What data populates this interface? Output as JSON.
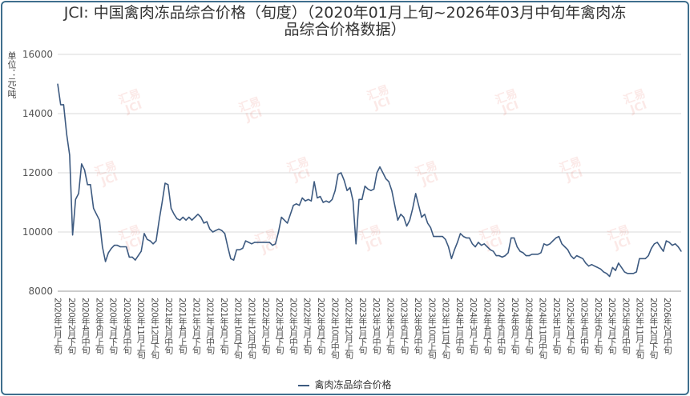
{
  "chart_data": {
    "type": "line",
    "title": "JCI: 中国禽肉冻品综合价格（旬度）（2020年01月上旬~2026年03月中旬年禽肉冻品综合价格数据）",
    "title_lines": [
      "JCI: 中国禽肉冻品综合价格（旬度）（2020年01月上旬~2026年03月中旬年禽肉冻",
      "品综合价格数据）"
    ],
    "ylabel": "单位：元/吨",
    "ylim": [
      8000,
      16000
    ],
    "yticks": [
      8000,
      10000,
      12000,
      14000,
      16000
    ],
    "grid": true,
    "legend_position": "bottom-center",
    "x_tick_labels": [
      "2020年1月上旬",
      "2020年2月下旬",
      "2020年4月中旬",
      "2020年6月上旬",
      "2020年7月下旬",
      "2020年9月中旬",
      "2020年11月上旬",
      "2020年12月下旬",
      "2021年2月中旬",
      "2021年4月上旬",
      "2021年5月下旬",
      "2021年7月中旬",
      "2021年9月上旬",
      "2021年10月下旬",
      "2021年12月中旬",
      "2022年2月上旬",
      "2022年3月下旬",
      "2022年5月中旬",
      "2022年7月上旬",
      "2022年8月下旬",
      "2022年10月中旬",
      "2022年12月上旬",
      "2023年1月下旬",
      "2023年3月中旬",
      "2023年5月上旬",
      "2023年6月下旬",
      "2023年8月中旬",
      "2023年10月上旬",
      "2023年11月下旬",
      "2024年1月中旬",
      "2024年3月上旬",
      "2024年4月下旬",
      "2024年6月中旬",
      "2024年8月上旬",
      "2024年9月下旬",
      "2024年11月中旬",
      "2025年1月上旬",
      "2025年2月下旬",
      "2025年4月中旬",
      "2025年6月上旬",
      "2025年7月下旬",
      "2025年9月中旬",
      "2025年11月上旬",
      "2025年12月下旬",
      "2026年2月中旬"
    ],
    "series": [
      {
        "name": "禽肉冻品综合价格",
        "color": "#3d5a80",
        "values": [
          15000,
          14300,
          14300,
          13300,
          12600,
          9900,
          11100,
          11300,
          12300,
          12100,
          11600,
          11600,
          10800,
          10600,
          10400,
          9500,
          9000,
          9300,
          9450,
          9550,
          9550,
          9500,
          9500,
          9500,
          9150,
          9150,
          9050,
          9200,
          9350,
          9950,
          9750,
          9700,
          9600,
          9700,
          10400,
          11000,
          11650,
          11600,
          10800,
          10600,
          10450,
          10400,
          10500,
          10400,
          10500,
          10400,
          10500,
          10600,
          10500,
          10300,
          10350,
          10100,
          10000,
          10050,
          10100,
          10050,
          9950,
          9500,
          9100,
          9050,
          9400,
          9400,
          9450,
          9700,
          9650,
          9600,
          9650,
          9650,
          9650,
          9650,
          9650,
          9650,
          9550,
          9600,
          10000,
          10500,
          10400,
          10300,
          10600,
          10900,
          10950,
          10900,
          11150,
          11050,
          11100,
          11050,
          11700,
          11150,
          11200,
          11000,
          11050,
          11000,
          11100,
          11400,
          11950,
          12000,
          11750,
          11400,
          11500,
          11050,
          9600,
          11100,
          11100,
          11550,
          11450,
          11400,
          11450,
          12000,
          12200,
          12000,
          11800,
          11700,
          11400,
          10900,
          10400,
          10600,
          10500,
          10200,
          10400,
          10800,
          11300,
          10900,
          10500,
          10600,
          10300,
          10150,
          9850,
          9850,
          9850,
          9850,
          9750,
          9500,
          9100,
          9400,
          9650,
          9950,
          9850,
          9800,
          9800,
          9600,
          9500,
          9650,
          9550,
          9600,
          9500,
          9400,
          9350,
          9200,
          9200,
          9150,
          9200,
          9300,
          9800,
          9800,
          9500,
          9350,
          9300,
          9200,
          9200,
          9250,
          9250,
          9250,
          9300,
          9600,
          9550,
          9600,
          9700,
          9800,
          9850,
          9600,
          9500,
          9400,
          9200,
          9100,
          9200,
          9150,
          9100,
          8950,
          8850,
          8900,
          8850,
          8800,
          8750,
          8650,
          8600,
          8500,
          8800,
          8700,
          8950,
          8800,
          8650,
          8600,
          8600,
          8600,
          8650,
          9100,
          9100,
          9100,
          9200,
          9450,
          9600,
          9650,
          9500,
          9350,
          9700,
          9650,
          9550,
          9600,
          9500,
          9350
        ]
      }
    ]
  },
  "watermark": [
    "汇易",
    "JCI"
  ]
}
